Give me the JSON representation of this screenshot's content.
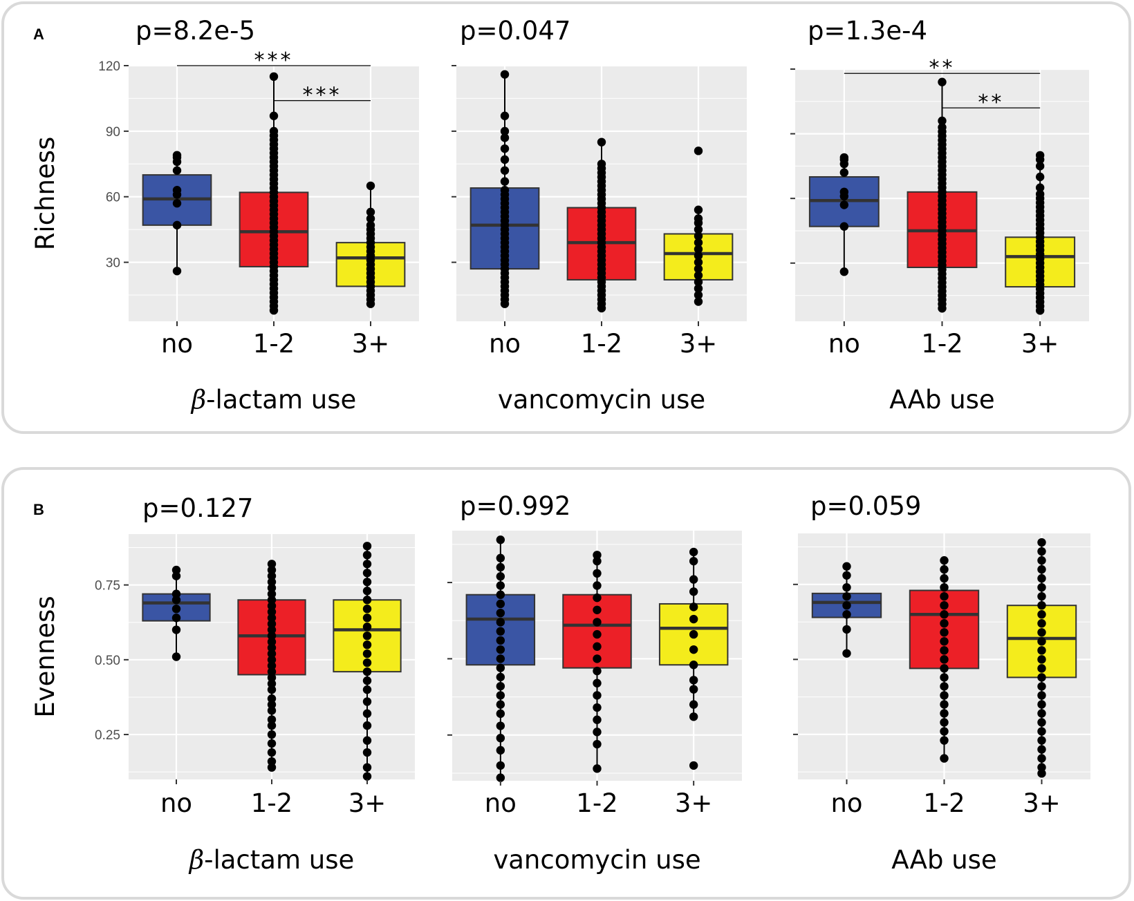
{
  "colors": {
    "no": "#3a55a4",
    "1-2": "#ec2027",
    "3+": "#f4ec1c"
  },
  "chart_data": [
    {
      "type": "box",
      "panel": "A",
      "title": "p=8.2e-5",
      "xlabel_prefix": "β",
      "xlabel": "-lactam use",
      "ylabel": "Richness",
      "ylim": [
        3,
        120
      ],
      "yticks": [
        30,
        60,
        90,
        120
      ],
      "ytick_labels": [
        "30",
        "60",
        "90",
        "120"
      ],
      "categories": [
        "no",
        "1-2",
        "3+"
      ],
      "boxes": [
        {
          "q1": 47,
          "median": 59,
          "q3": 70,
          "lo": 26,
          "hi": 79,
          "points": [
            26,
            47,
            57,
            61,
            63,
            72,
            76,
            78,
            79
          ]
        },
        {
          "q1": 28,
          "median": 44,
          "q3": 62,
          "lo": 8,
          "hi": 115,
          "points": [
            8,
            10,
            12,
            14,
            16,
            18,
            20,
            22,
            24,
            26,
            28,
            30,
            32,
            34,
            36,
            38,
            40,
            42,
            44,
            46,
            48,
            50,
            52,
            54,
            56,
            58,
            60,
            62,
            64,
            66,
            68,
            70,
            72,
            74,
            76,
            78,
            80,
            82,
            84,
            86,
            88,
            90,
            97,
            115
          ]
        },
        {
          "q1": 19,
          "median": 32,
          "q3": 39,
          "lo": 11,
          "hi": 65,
          "points": [
            11,
            13,
            15,
            17,
            19,
            21,
            23,
            25,
            27,
            29,
            31,
            33,
            35,
            37,
            39,
            41,
            43,
            45,
            47,
            50,
            53,
            65
          ]
        }
      ],
      "significance": [
        {
          "from": "no",
          "to": "3+",
          "label": "***",
          "y": 120
        },
        {
          "from": "1-2",
          "to": "3+",
          "label": "***",
          "y": 104
        }
      ]
    },
    {
      "type": "box",
      "panel": "A",
      "title": "p=0.047",
      "xlabel": "vancomycin use",
      "ylabel": "",
      "ylim": [
        3,
        120
      ],
      "yticks": [
        30,
        60,
        90,
        120
      ],
      "categories": [
        "no",
        "1-2",
        "3+"
      ],
      "boxes": [
        {
          "q1": 27,
          "median": 47,
          "q3": 64,
          "lo": 11,
          "hi": 116,
          "points": [
            11,
            13,
            15,
            17,
            19,
            21,
            23,
            25,
            27,
            29,
            31,
            33,
            35,
            37,
            39,
            41,
            43,
            45,
            47,
            49,
            51,
            53,
            55,
            57,
            59,
            61,
            63,
            67,
            72,
            77,
            82,
            87,
            90,
            97,
            116
          ]
        },
        {
          "q1": 22,
          "median": 39,
          "q3": 55,
          "lo": 9,
          "hi": 85,
          "points": [
            9,
            11,
            13,
            15,
            17,
            19,
            21,
            23,
            25,
            27,
            29,
            31,
            33,
            35,
            37,
            39,
            41,
            43,
            45,
            47,
            49,
            51,
            53,
            55,
            57,
            59,
            61,
            63,
            65,
            67,
            69,
            71,
            73,
            75,
            85
          ]
        },
        {
          "q1": 22,
          "median": 34,
          "q3": 43,
          "lo": 12,
          "hi": 54,
          "points": [
            12,
            15,
            18,
            21,
            24,
            27,
            30,
            33,
            36,
            39,
            42,
            45,
            48,
            50,
            54,
            81
          ]
        }
      ]
    },
    {
      "type": "box",
      "panel": "A",
      "title": "p=1.3e-4",
      "xlabel": "AAb use",
      "ylabel": "",
      "ylim": [
        3,
        120
      ],
      "yticks": [
        30,
        60,
        90,
        120
      ],
      "categories": [
        "no",
        "1-2",
        "3+"
      ],
      "boxes": [
        {
          "q1": 47,
          "median": 59,
          "q3": 70,
          "lo": 26,
          "hi": 79,
          "points": [
            26,
            47,
            57,
            61,
            63,
            72,
            76,
            78,
            79
          ]
        },
        {
          "q1": 28,
          "median": 45,
          "q3": 63,
          "lo": 9,
          "hi": 114,
          "points": [
            9,
            11,
            13,
            15,
            17,
            19,
            21,
            23,
            25,
            27,
            29,
            31,
            33,
            35,
            37,
            39,
            41,
            43,
            45,
            47,
            49,
            51,
            53,
            55,
            57,
            59,
            61,
            63,
            65,
            67,
            69,
            71,
            73,
            75,
            77,
            79,
            81,
            83,
            85,
            87,
            89,
            91,
            93,
            96,
            114
          ]
        },
        {
          "q1": 19,
          "median": 33,
          "q3": 42,
          "lo": 8,
          "hi": 80,
          "points": [
            8,
            10,
            12,
            14,
            16,
            18,
            20,
            22,
            24,
            26,
            28,
            30,
            32,
            34,
            36,
            38,
            40,
            42,
            44,
            46,
            48,
            50,
            52,
            54,
            56,
            58,
            60,
            62,
            65,
            70,
            75,
            78,
            80
          ]
        }
      ],
      "significance": [
        {
          "from": "no",
          "to": "3+",
          "label": "**",
          "y": 118
        },
        {
          "from": "1-2",
          "to": "3+",
          "label": "**",
          "y": 102
        }
      ]
    },
    {
      "type": "box",
      "panel": "B",
      "title": "p=0.127",
      "xlabel_prefix": "β",
      "xlabel": "-lactam use",
      "ylabel": "Evenness",
      "ylim": [
        0.1,
        0.92
      ],
      "yticks": [
        0.25,
        0.5,
        0.75
      ],
      "ytick_labels": [
        "0.25",
        "0.50",
        "0.75"
      ],
      "categories": [
        "no",
        "1-2",
        "3+"
      ],
      "boxes": [
        {
          "q1": 0.63,
          "median": 0.69,
          "q3": 0.72,
          "lo": 0.51,
          "hi": 0.8,
          "points": [
            0.51,
            0.6,
            0.64,
            0.67,
            0.7,
            0.72,
            0.78,
            0.8
          ]
        },
        {
          "q1": 0.45,
          "median": 0.58,
          "q3": 0.7,
          "lo": 0.14,
          "hi": 0.82,
          "points": [
            0.14,
            0.16,
            0.19,
            0.22,
            0.25,
            0.28,
            0.3,
            0.33,
            0.35,
            0.37,
            0.4,
            0.42,
            0.44,
            0.46,
            0.48,
            0.5,
            0.52,
            0.54,
            0.56,
            0.58,
            0.6,
            0.62,
            0.64,
            0.66,
            0.68,
            0.7,
            0.72,
            0.74,
            0.76,
            0.78,
            0.8,
            0.82
          ]
        },
        {
          "q1": 0.46,
          "median": 0.6,
          "q3": 0.7,
          "lo": 0.11,
          "hi": 0.88,
          "points": [
            0.11,
            0.14,
            0.19,
            0.23,
            0.28,
            0.32,
            0.36,
            0.4,
            0.43,
            0.46,
            0.49,
            0.52,
            0.55,
            0.58,
            0.61,
            0.64,
            0.67,
            0.7,
            0.73,
            0.76,
            0.79,
            0.82,
            0.85,
            0.88
          ]
        }
      ]
    },
    {
      "type": "box",
      "panel": "B",
      "title": "p=0.992",
      "xlabel": "vancomycin use",
      "ylabel": "",
      "ylim": [
        0.1,
        0.92
      ],
      "yticks": [
        0.25,
        0.5,
        0.75
      ],
      "categories": [
        "no",
        "1-2",
        "3+"
      ],
      "boxes": [
        {
          "q1": 0.48,
          "median": 0.63,
          "q3": 0.71,
          "lo": 0.11,
          "hi": 0.89,
          "points": [
            0.11,
            0.15,
            0.2,
            0.24,
            0.28,
            0.32,
            0.35,
            0.38,
            0.41,
            0.44,
            0.47,
            0.5,
            0.53,
            0.56,
            0.59,
            0.62,
            0.65,
            0.68,
            0.71,
            0.74,
            0.77,
            0.8,
            0.83,
            0.89
          ]
        },
        {
          "q1": 0.47,
          "median": 0.61,
          "q3": 0.71,
          "lo": 0.14,
          "hi": 0.84,
          "points": [
            0.14,
            0.22,
            0.26,
            0.3,
            0.34,
            0.38,
            0.42,
            0.46,
            0.5,
            0.54,
            0.58,
            0.62,
            0.66,
            0.7,
            0.74,
            0.78,
            0.82,
            0.84
          ]
        },
        {
          "q1": 0.48,
          "median": 0.6,
          "q3": 0.68,
          "lo": 0.31,
          "hi": 0.85,
          "points": [
            0.15,
            0.31,
            0.35,
            0.4,
            0.43,
            0.48,
            0.53,
            0.58,
            0.63,
            0.67,
            0.72,
            0.76,
            0.82,
            0.85
          ]
        }
      ]
    },
    {
      "type": "box",
      "panel": "B",
      "title": "p=0.059",
      "xlabel": "AAb use",
      "ylabel": "",
      "ylim": [
        0.1,
        0.92
      ],
      "yticks": [
        0.25,
        0.5,
        0.75
      ],
      "categories": [
        "no",
        "1-2",
        "3+"
      ],
      "boxes": [
        {
          "q1": 0.64,
          "median": 0.69,
          "q3": 0.72,
          "lo": 0.52,
          "hi": 0.81,
          "points": [
            0.52,
            0.6,
            0.65,
            0.68,
            0.71,
            0.74,
            0.78,
            0.81
          ]
        },
        {
          "q1": 0.47,
          "median": 0.65,
          "q3": 0.73,
          "lo": 0.17,
          "hi": 0.83,
          "points": [
            0.17,
            0.23,
            0.26,
            0.29,
            0.32,
            0.35,
            0.38,
            0.41,
            0.44,
            0.47,
            0.5,
            0.53,
            0.56,
            0.59,
            0.62,
            0.65,
            0.68,
            0.71,
            0.74,
            0.77,
            0.8,
            0.83
          ]
        },
        {
          "q1": 0.44,
          "median": 0.57,
          "q3": 0.68,
          "lo": 0.12,
          "hi": 0.89,
          "points": [
            0.12,
            0.14,
            0.17,
            0.2,
            0.23,
            0.26,
            0.29,
            0.32,
            0.35,
            0.38,
            0.41,
            0.44,
            0.47,
            0.5,
            0.53,
            0.56,
            0.59,
            0.62,
            0.65,
            0.68,
            0.71,
            0.74,
            0.77,
            0.8,
            0.83,
            0.86,
            0.89
          ]
        }
      ]
    }
  ],
  "panels": {
    "A": "A",
    "B": "B"
  }
}
